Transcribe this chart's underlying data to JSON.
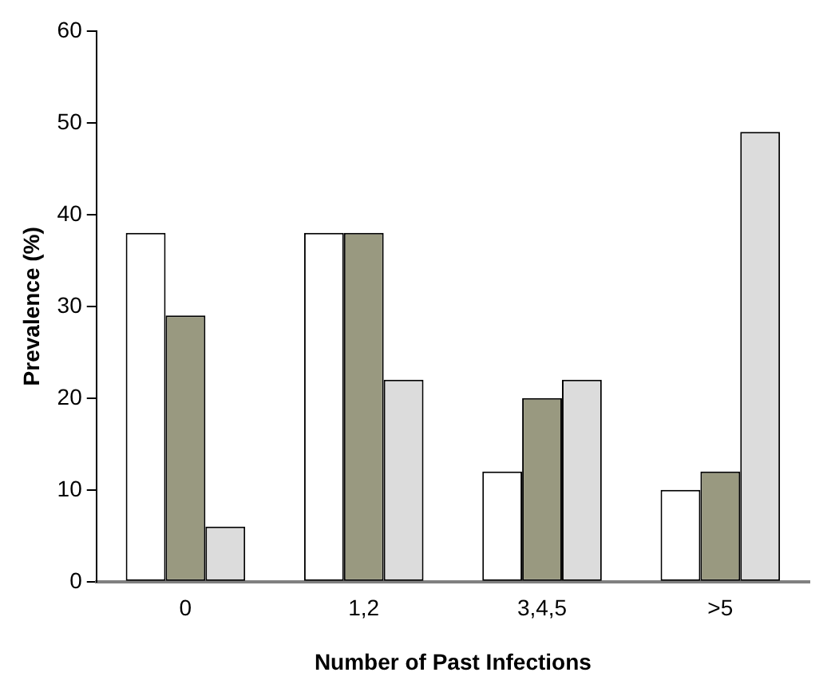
{
  "chart_data": {
    "type": "bar",
    "xlabel": "Number of Past Infections",
    "ylabel": "Prevalence (%)",
    "categories": [
      "0",
      "1,2",
      "3,4,5",
      ">5"
    ],
    "series": [
      {
        "color": "#ffffff",
        "values": [
          38,
          38,
          12,
          10
        ]
      },
      {
        "color": "#999980",
        "values": [
          29,
          38,
          20,
          12
        ]
      },
      {
        "color": "#dcdcdc",
        "values": [
          6,
          22,
          22,
          49
        ]
      }
    ],
    "ylim": [
      0,
      60
    ],
    "yticks": [
      0,
      10,
      20,
      30,
      40,
      50,
      60
    ],
    "grid": false,
    "legend": false
  }
}
